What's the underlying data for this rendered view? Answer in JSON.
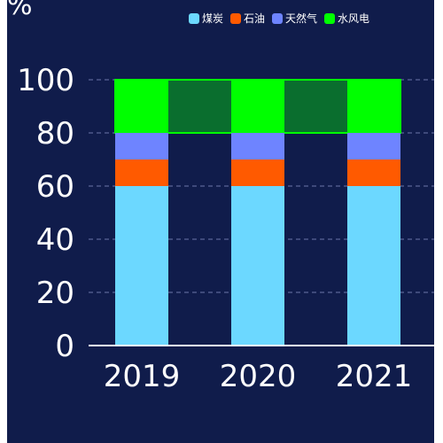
{
  "unit_label": "%",
  "colors": {
    "background": "#101c4b",
    "grid": "#6b76a8",
    "axis": "#ffffff",
    "text": "#ffffff",
    "highlight_fill": "#0a6e2e",
    "highlight_stroke": "#00ff00"
  },
  "chart_data": {
    "type": "bar",
    "stacked": true,
    "categories": [
      "2019",
      "2020",
      "2021"
    ],
    "series": [
      {
        "name": "煤炭",
        "color": "#6cd8ff",
        "values": [
          60,
          60,
          60
        ]
      },
      {
        "name": "石油",
        "color": "#ff5a00",
        "values": [
          10,
          10,
          10
        ]
      },
      {
        "name": "天然气",
        "color": "#6e84ff",
        "values": [
          10,
          10,
          10
        ]
      },
      {
        "name": "水风电",
        "color": "#00ff00",
        "values": [
          20,
          20,
          20
        ]
      }
    ],
    "highlight_band": {
      "from": 80,
      "to": 100
    },
    "yticks": [
      "0",
      "20",
      "40",
      "60",
      "80",
      "100"
    ],
    "ylim": [
      0,
      100
    ],
    "grid": true,
    "legend_position": "top"
  }
}
